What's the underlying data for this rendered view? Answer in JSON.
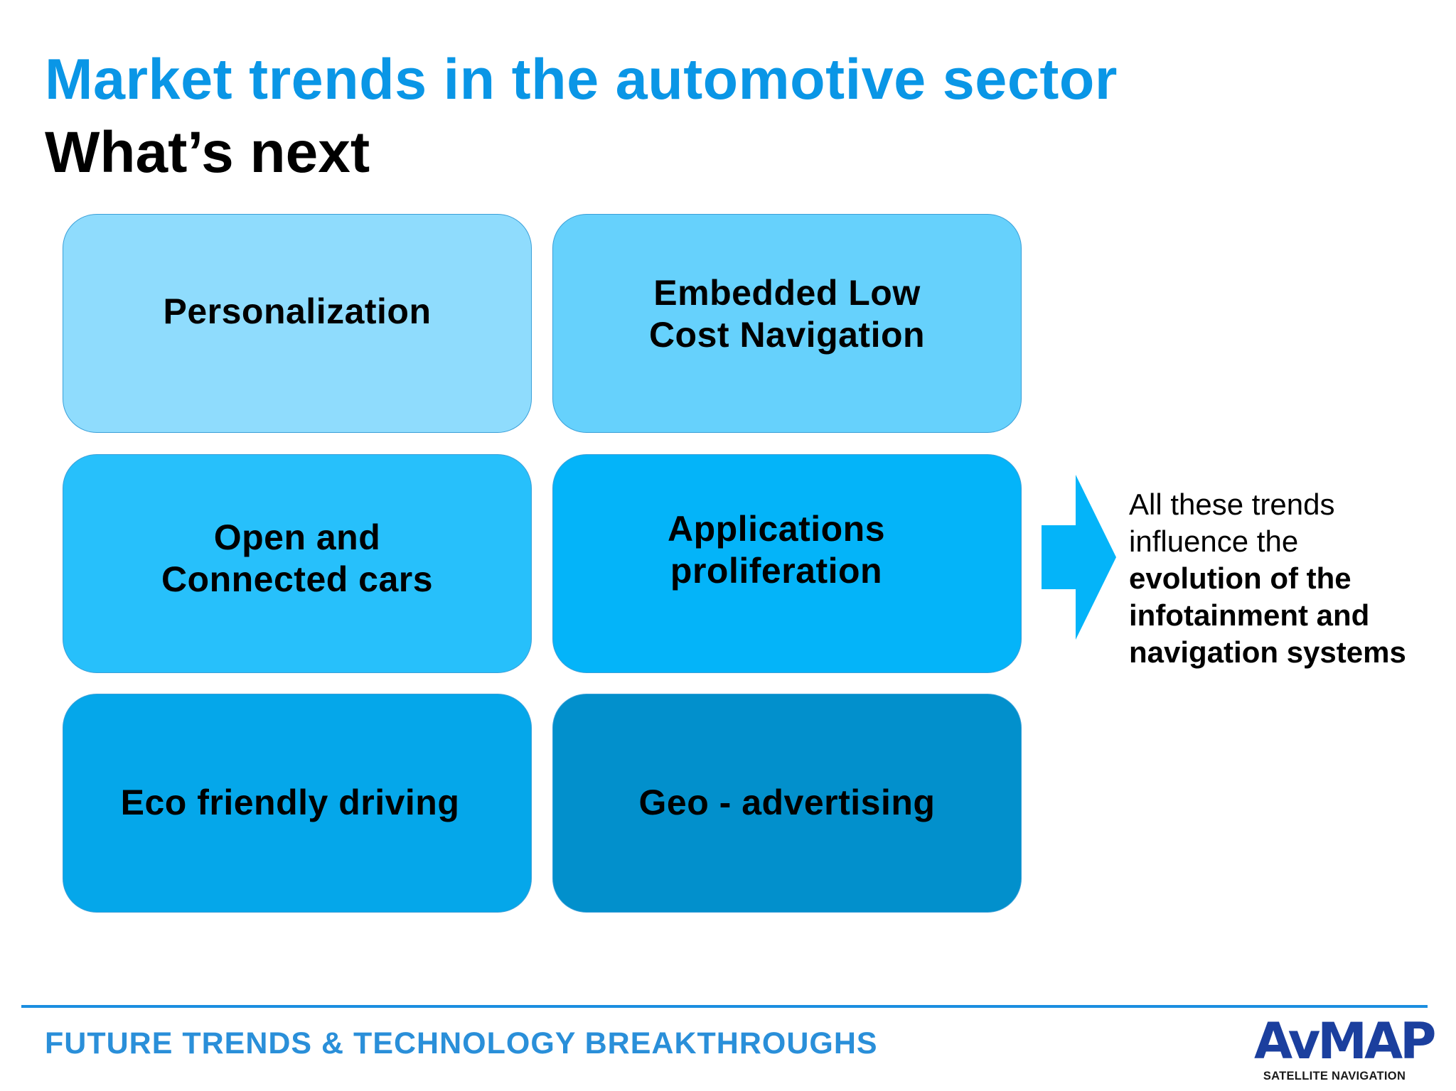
{
  "slide": {
    "title": "Market trends in the automotive sector",
    "subtitle": "What’s next"
  },
  "trends": [
    {
      "lines": [
        "Personalization"
      ]
    },
    {
      "lines": [
        "Embedded Low",
        "Cost Navigation"
      ]
    },
    {
      "lines": [
        "Open and",
        "Connected cars"
      ]
    },
    {
      "lines": [
        "Applications",
        "proliferation"
      ]
    },
    {
      "lines": [
        "Eco friendly driving"
      ]
    },
    {
      "lines": [
        "Geo - advertising"
      ]
    }
  ],
  "conclusion": {
    "lines": [
      "All these trends",
      "influence the"
    ],
    "bold_lines": [
      "evolution of the",
      "infotainment and",
      "navigation systems"
    ]
  },
  "footer": {
    "text": "FUTURE TRENDS & TECHNOLOGY BREAKTHROUGHS"
  },
  "logo": {
    "name": "AvMAP",
    "tagline": "SATELLITE NAVIGATION"
  },
  "colors": {
    "title": "#0a96e6",
    "box_1": "#8fdcfd",
    "box_2": "#66d1fc",
    "box_3": "#27c0fb",
    "box_4": "#04b4f9",
    "box_5": "#05a7ea",
    "box_6": "#0290cc",
    "arrow": "#04b4f9",
    "footer_line": "#1b8ee0",
    "logo": "#1b3f9e"
  },
  "icons": {
    "arrow": "right-arrow-icon"
  }
}
